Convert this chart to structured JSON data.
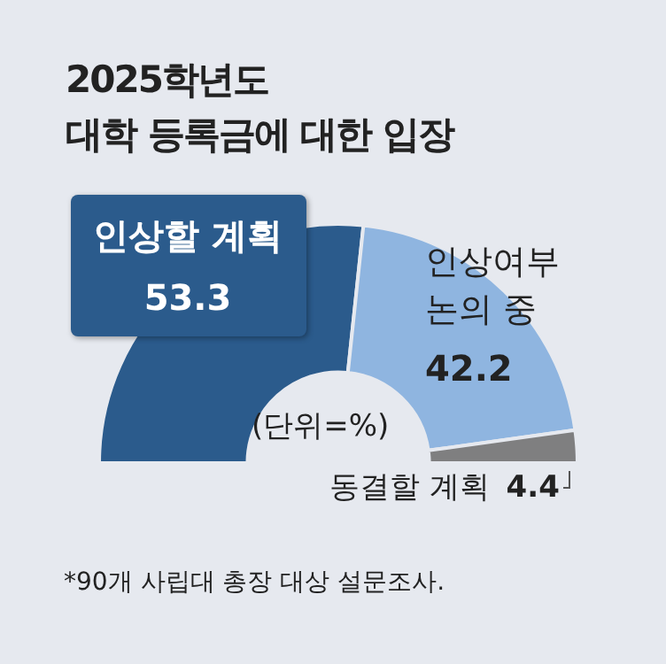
{
  "chart_data": {
    "type": "donut",
    "title": "2025학년도\n대학 등록금에 대한 입장",
    "categories": [
      "인상할 계획",
      "인상여부 논의 중",
      "동결할 계획"
    ],
    "values": [
      53.3,
      42.2,
      4.4
    ],
    "colors": [
      "#2b5b8c",
      "#8fb5e0",
      "#7f7f80"
    ],
    "data_labels": true,
    "legend": false,
    "annotations": [
      "(단위=%)",
      "*90개 사립대 총장 대상 설문조사."
    ]
  }
}
